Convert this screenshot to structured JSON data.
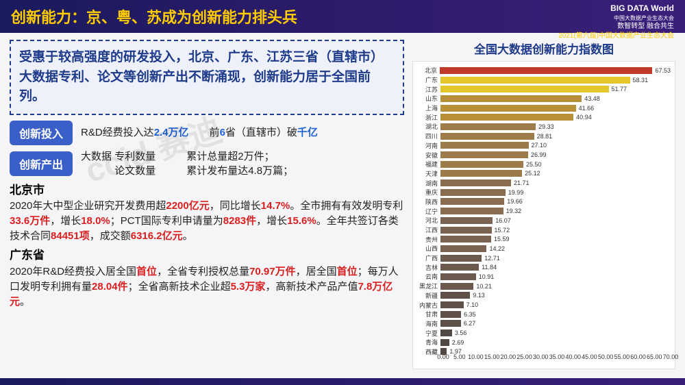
{
  "header": {
    "title": "创新能力：京、粤、苏成为创新能力排头兵",
    "logo": "BIG DATA World",
    "logo_sub": "中国大数据产业生态大会",
    "tag1": "数智转型 融合共生",
    "tag2": "2021(第六届)中国大数据产业生态大会"
  },
  "summary": "受惠于较高强度的研发投入，北京、广东、江苏三省（直辖市）大数据专利、论文等创新产出不断涌现，创新能力居于全国前列。",
  "pill1": {
    "label": "创新投入",
    "text_a": "R&D经费投入达",
    "hl_a": "2.4万亿",
    "text_b": "　　前",
    "hl_b": "6",
    "text_c": "省（直辖市）破",
    "hl_c": "千亿"
  },
  "pill2": {
    "label": "创新产出",
    "line1a": "大数据",
    "line1b": "专利数量",
    "line1c": "累计总量超2万件；",
    "line2b": "论文数量",
    "line2c": "累计发布量达4.8万篇；"
  },
  "beijing": {
    "name": "北京市",
    "t1": "2020年大中型企业研究开发费用超",
    "v1": "2200亿元",
    "t2": "，同比增长",
    "v2": "14.7%",
    "t3": "。全市拥有有效发明专利",
    "v3": "33.6万件",
    "t4": "，增长",
    "v4": "18.0%",
    "t5": "；PCT国际专利申请量为",
    "v5": "8283件",
    "t6": "，增长",
    "v6": "15.6%",
    "t7": "。全年共签订各类技术合同",
    "v7": "84451项",
    "t8": "，成交额",
    "v8": "6316.2亿元",
    "t9": "。"
  },
  "guangdong": {
    "name": "广东省",
    "t1": "2020年R&D经费投入居全国",
    "v1": "首位",
    "t2": "，全省专利授权总量",
    "v2": "70.97万件",
    "t3": "，居全国",
    "v3": "首位",
    "t4": "；每万人口发明专利拥有量",
    "v4": "28.04件",
    "t5": "；全省高新技术企业超",
    "v5": "5.3万家",
    "t6": "，高新技术产品产值",
    "v6": "7.8万亿元",
    "t7": "。"
  },
  "chart": {
    "title": "全国大数据创新能力指数图",
    "type": "bar-horizontal",
    "xlim": [
      0,
      70
    ],
    "xtick_step": 5,
    "bg": "#ffffff",
    "bars": [
      {
        "label": "北京",
        "value": 67.53,
        "color": "#c0392b"
      },
      {
        "label": "广东",
        "value": 58.31,
        "color": "#e3c62a"
      },
      {
        "label": "江苏",
        "value": 51.77,
        "color": "#e3c62a"
      },
      {
        "label": "山东",
        "value": 43.48,
        "color": "#b8903a"
      },
      {
        "label": "上海",
        "value": 41.66,
        "color": "#b8903a"
      },
      {
        "label": "浙江",
        "value": 40.94,
        "color": "#b8903a"
      },
      {
        "label": "湖北",
        "value": 29.33,
        "color": "#9c7a4a"
      },
      {
        "label": "四川",
        "value": 28.81,
        "color": "#9c7a4a"
      },
      {
        "label": "河南",
        "value": 27.1,
        "color": "#9c7a4a"
      },
      {
        "label": "安徽",
        "value": 26.99,
        "color": "#9c7a4a"
      },
      {
        "label": "福建",
        "value": 25.5,
        "color": "#9c7a4a"
      },
      {
        "label": "天津",
        "value": 25.12,
        "color": "#9c7a4a"
      },
      {
        "label": "湖南",
        "value": 21.71,
        "color": "#8a6d50"
      },
      {
        "label": "重庆",
        "value": 19.99,
        "color": "#8a6d50"
      },
      {
        "label": "陕西",
        "value": 19.66,
        "color": "#8a6d50"
      },
      {
        "label": "辽宁",
        "value": 19.32,
        "color": "#8a6d50"
      },
      {
        "label": "河北",
        "value": 16.07,
        "color": "#7a6352"
      },
      {
        "label": "江西",
        "value": 15.72,
        "color": "#7a6352"
      },
      {
        "label": "贵州",
        "value": 15.59,
        "color": "#7a6352"
      },
      {
        "label": "山西",
        "value": 14.22,
        "color": "#7a6352"
      },
      {
        "label": "广西",
        "value": 12.71,
        "color": "#6d5a4e"
      },
      {
        "label": "吉林",
        "value": 11.84,
        "color": "#6d5a4e"
      },
      {
        "label": "云南",
        "value": 10.91,
        "color": "#6d5a4e"
      },
      {
        "label": "黑龙江",
        "value": 10.21,
        "color": "#6d5a4e"
      },
      {
        "label": "新疆",
        "value": 9.13,
        "color": "#5f514a"
      },
      {
        "label": "内蒙古",
        "value": 7.1,
        "color": "#5f514a"
      },
      {
        "label": "甘肃",
        "value": 6.35,
        "color": "#5f514a"
      },
      {
        "label": "海南",
        "value": 6.27,
        "color": "#5f514a"
      },
      {
        "label": "宁夏",
        "value": 3.56,
        "color": "#524944"
      },
      {
        "label": "青海",
        "value": 2.69,
        "color": "#524944"
      },
      {
        "label": "西藏",
        "value": 1.97,
        "color": "#524944"
      }
    ]
  },
  "watermark": "ccid 赛迪"
}
